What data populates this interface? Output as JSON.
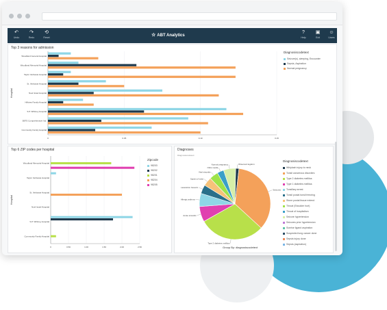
{
  "app": {
    "title": "ABT Analytics"
  },
  "toolbar": {
    "left": [
      {
        "icon": "undo-icon",
        "label": "Undo"
      },
      {
        "icon": "redo-icon",
        "label": "Redo"
      },
      {
        "icon": "reset-icon",
        "label": "Reset"
      }
    ],
    "right": [
      {
        "icon": "help-icon",
        "label": "Help"
      },
      {
        "icon": "lock-icon",
        "label": "Exit"
      },
      {
        "icon": "user-icon",
        "label": "Users"
      }
    ]
  },
  "colors": {
    "orange": "#f4a15a",
    "navy": "#1f3a4d",
    "lightblue": "#8fd6e6",
    "lime": "#b8e04a",
    "magenta": "#e040b0",
    "teal": "#2a6f8a"
  },
  "chart_data": [
    {
      "type": "bar",
      "title": "Top 3 reasons for admission",
      "ylabel": "Hospital",
      "categories": [
        "Woodland General Hospital",
        "Woodland Memorial Hospital",
        "Taylor Verfasste Hospital",
        "St. Verfasste Hospital",
        "Noel Israel Hospital",
        "Hillview Family Hospital",
        "S.P. Whitney Hospital",
        "SBTS Comprehensive Ind.",
        "Community Family Hospital"
      ],
      "xticks": [
        "0",
        "0.05",
        "0.10",
        "0.15"
      ],
      "xlim": [
        0,
        0.15
      ],
      "legend_title": "Diagnosiscodetext",
      "series": [
        {
          "name": "Seizure(s) ,sleeping, Encounter",
          "color": "#8fd6e6",
          "values": [
            0.015,
            0.02,
            0.015,
            0.038,
            0.075,
            0.023,
            0.117,
            0.092,
            0.068
          ]
        },
        {
          "name": "Sepsis, Aspiration",
          "color": "#1f3a4d",
          "values": [
            0.007,
            0.058,
            0.01,
            0.02,
            0.03,
            0.01,
            0.063,
            0.035,
            0.031
          ]
        },
        {
          "name": "Normal pregnancy",
          "color": "#f4a15a",
          "values": [
            0.033,
            0.123,
            0.123,
            0.05,
            0.112,
            0.03,
            0.128,
            0.105,
            0.1
          ]
        }
      ]
    },
    {
      "type": "bar",
      "title": "Top 6 ZIP codes per hospital",
      "ylabel": "Hospital",
      "categories": [
        "Woodland Memorial Hospital",
        "Taylor Verfasste Hospital",
        "St. Verfasste Hospital",
        "Noel Israel Hospital",
        "S.P. Whitney Hospital",
        "Community Family Hospital"
      ],
      "xticks": [
        "0",
        "0.50",
        "1.00",
        "1.50",
        "2.00",
        "2.50"
      ],
      "xlim": [
        0,
        2.5
      ],
      "legend_title": "Zipcode",
      "series": [
        {
          "name": "98203",
          "color": "#8fd6e6",
          "values": [
            0,
            0.15,
            0,
            0,
            2.3,
            0
          ]
        },
        {
          "name": "98202",
          "color": "#1f3a4d",
          "values": [
            0,
            0,
            0,
            0,
            1.75,
            0
          ]
        },
        {
          "name": "98201",
          "color": "#b8e04a",
          "values": [
            1.7,
            0,
            0,
            0,
            0,
            0.15
          ]
        },
        {
          "name": "98204",
          "color": "#f4a15a",
          "values": [
            0,
            0,
            2.0,
            0,
            0,
            0
          ]
        },
        {
          "name": "98205",
          "color": "#e040b0",
          "values": [
            2.35,
            0,
            0,
            0,
            0,
            0
          ]
        }
      ]
    },
    {
      "type": "pie",
      "title": "Diagnoses",
      "subtitle": "Diagnosiscodetext",
      "xlabel": "Group By: diagnosiscodetext",
      "legend_title": "Diagnosiscodetext",
      "slices": [
        {
          "label": "Observed leg/arm",
          "value": 1.5,
          "color": "#1f3a4d"
        },
        {
          "label": "Seizures",
          "value": 35,
          "color": "#f4a15a"
        },
        {
          "label": "Type 2 diabetes mellitus",
          "value": 30,
          "color": "#b8e04a"
        },
        {
          "label": "Acute sinusitis",
          "value": 7,
          "color": "#e040b0"
        },
        {
          "label": "Allergic asthma",
          "value": 6,
          "color": "#8fd6e6"
        },
        {
          "label": "Laceration forearm",
          "value": 4,
          "color": "#2a6f8a"
        },
        {
          "label": "Sprain of wrist",
          "value": 4,
          "color": "#f6c27a"
        },
        {
          "label": "Viral sinusitis",
          "value": 4,
          "color": "#9ee34a"
        },
        {
          "label": "Otitis media",
          "value": 3,
          "color": "#3aa0c8"
        },
        {
          "label": "Normal pregnancy",
          "value": 5.5,
          "color": "#d6efa8"
        }
      ],
      "legend": [
        "Whiplash injury to neck",
        "Tonsil cancerous disorders",
        "Type 2 diabetes mellitus",
        "Type 1 diabetes mellitus",
        "Tonsillary arrest",
        "Tonsil postal tonsil freezing",
        "Stone postal tissue extend",
        "Throat (Shoulder hurt)",
        "Throat of hospitalism",
        "Seizure hypertension",
        "Seizures prior hypertension",
        "Sunrise ligand aspiration",
        "Suspected lung cancer done",
        "Sepsis injury done",
        "Sepsis (aspiration)"
      ]
    }
  ]
}
